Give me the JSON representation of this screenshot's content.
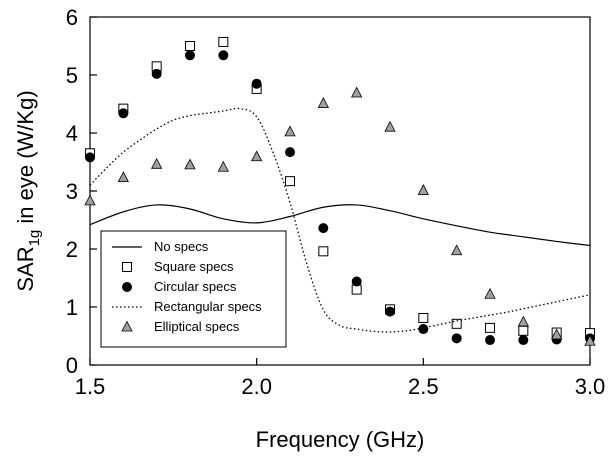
{
  "chart_data": {
    "type": "scatter",
    "xlabel": "Frequency (GHz)",
    "ylabel_main": "SAR",
    "ylabel_sub": "1g",
    "ylabel_rest": " in eye (W/Kg)",
    "xlim": [
      1.5,
      3.0
    ],
    "ylim": [
      0,
      6
    ],
    "xticks": [
      1.5,
      2.0,
      2.5,
      3.0
    ],
    "xtick_labels": [
      "1.5",
      "2.0",
      "2.5",
      "3.0"
    ],
    "yticks": [
      0,
      1,
      2,
      3,
      4,
      5,
      6
    ],
    "ytick_labels": [
      "0",
      "1",
      "2",
      "3",
      "4",
      "5",
      "6"
    ],
    "grid": false,
    "legend_position": "bottom-left",
    "series": [
      {
        "name": "No specs",
        "style": "line-solid",
        "x": [
          1.5,
          1.6,
          1.7,
          1.8,
          1.9,
          2.0,
          2.1,
          2.2,
          2.3,
          2.4,
          2.5,
          2.6,
          2.7,
          2.8,
          2.9,
          3.0
        ],
        "y": [
          2.42,
          2.64,
          2.76,
          2.69,
          2.52,
          2.45,
          2.56,
          2.72,
          2.76,
          2.66,
          2.52,
          2.4,
          2.29,
          2.21,
          2.13,
          2.06
        ]
      },
      {
        "name": "Square specs",
        "style": "open-square",
        "x": [
          1.5,
          1.6,
          1.7,
          1.8,
          1.9,
          2.0,
          2.1,
          2.2,
          2.3,
          2.4,
          2.5,
          2.6,
          2.7,
          2.8,
          2.9,
          3.0
        ],
        "y": [
          3.65,
          4.42,
          5.15,
          5.5,
          5.57,
          4.76,
          3.17,
          1.96,
          1.3,
          0.96,
          0.81,
          0.71,
          0.64,
          0.59,
          0.56,
          0.55
        ]
      },
      {
        "name": "Circular specs",
        "style": "filled-circle",
        "x": [
          1.5,
          1.6,
          1.7,
          1.8,
          1.9,
          2.0,
          2.1,
          2.2,
          2.3,
          2.4,
          2.5,
          2.6,
          2.7,
          2.8,
          2.9,
          3.0
        ],
        "y": [
          3.58,
          4.34,
          5.02,
          5.34,
          5.34,
          4.85,
          3.67,
          2.36,
          1.44,
          0.92,
          0.62,
          0.46,
          0.43,
          0.43,
          0.44,
          0.46
        ]
      },
      {
        "name": "Rectangular specs",
        "style": "line-dotted",
        "x": [
          1.5,
          1.55,
          1.6,
          1.65,
          1.7,
          1.75,
          1.8,
          1.85,
          1.9,
          1.95,
          2.0,
          2.05,
          2.1,
          2.15,
          2.2,
          2.25,
          2.3,
          2.35,
          2.4,
          2.45,
          2.5,
          2.55,
          2.6,
          2.65,
          2.7,
          2.75,
          2.8,
          2.85,
          2.9,
          2.95,
          3.0
        ],
        "y": [
          3.1,
          3.4,
          3.67,
          3.88,
          4.07,
          4.22,
          4.3,
          4.34,
          4.38,
          4.42,
          4.28,
          3.65,
          2.8,
          1.75,
          0.95,
          0.68,
          0.62,
          0.58,
          0.57,
          0.59,
          0.64,
          0.7,
          0.76,
          0.81,
          0.86,
          0.91,
          0.97,
          1.03,
          1.09,
          1.15,
          1.21
        ]
      },
      {
        "name": "Elliptical specs",
        "style": "gray-triangle",
        "x": [
          1.5,
          1.6,
          1.7,
          1.8,
          1.9,
          2.0,
          2.1,
          2.2,
          2.3,
          2.4,
          2.5,
          2.6,
          2.7,
          2.8,
          2.9,
          3.0
        ],
        "y": [
          2.83,
          3.23,
          3.46,
          3.45,
          3.41,
          3.59,
          4.02,
          4.51,
          4.69,
          4.1,
          3.01,
          1.97,
          1.22,
          0.74,
          0.52,
          0.41
        ]
      }
    ]
  },
  "colors": {
    "axis": "#000000",
    "marker_fill_black": "#000000",
    "triangle_fill": "#a0a0a0",
    "square_fill": "#ffffff"
  }
}
